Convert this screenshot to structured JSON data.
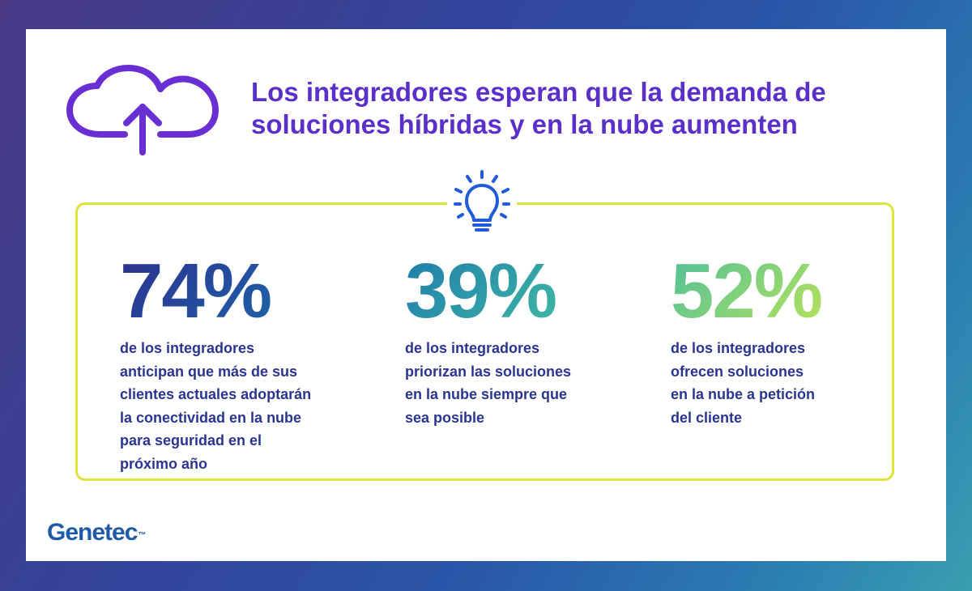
{
  "title": {
    "line1": "Los integradores esperan que la demanda de",
    "line2": "soluciones híbridas y en la nube aumenten"
  },
  "icons": {
    "header": "cloud-upload-icon",
    "box": "lightbulb-icon"
  },
  "stats": [
    {
      "value": "74%",
      "lines": [
        "de los integradores",
        "anticipan que más de sus",
        "clientes actuales adoptarán",
        "la conectividad en la nube",
        "para seguridad en el",
        "próximo año"
      ]
    },
    {
      "value": "39%",
      "lines": [
        "de los integradores",
        "priorizan las soluciones",
        "en la nube siempre que",
        "sea posible"
      ]
    },
    {
      "value": "52%",
      "lines": [
        "de los integradores",
        "ofrecen soluciones",
        "en la nube a petición",
        "del cliente"
      ]
    }
  ],
  "logo": {
    "text": "Genetec",
    "tm": "™"
  },
  "colors": {
    "title": "#5b2fc9",
    "box_border": "#dde43a",
    "body_text": "#2a3590",
    "logo": "#1f5aa8"
  }
}
